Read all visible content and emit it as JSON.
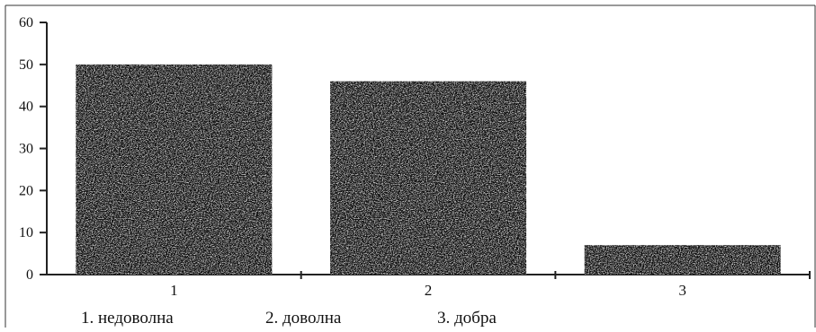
{
  "chart_data": {
    "type": "bar",
    "categories": [
      "1",
      "2",
      "3"
    ],
    "values": [
      50,
      46,
      7
    ],
    "ylim": [
      0,
      60
    ],
    "yticks": [
      "0",
      "10",
      "20",
      "30",
      "40",
      "50",
      "60"
    ],
    "grid": false,
    "legend": {
      "placement": "bottom",
      "entries": [
        "1. недоволна",
        "2. доволна",
        "3. добра"
      ]
    },
    "bar_color": "#0b0b0b",
    "axis_color": "#222222"
  }
}
